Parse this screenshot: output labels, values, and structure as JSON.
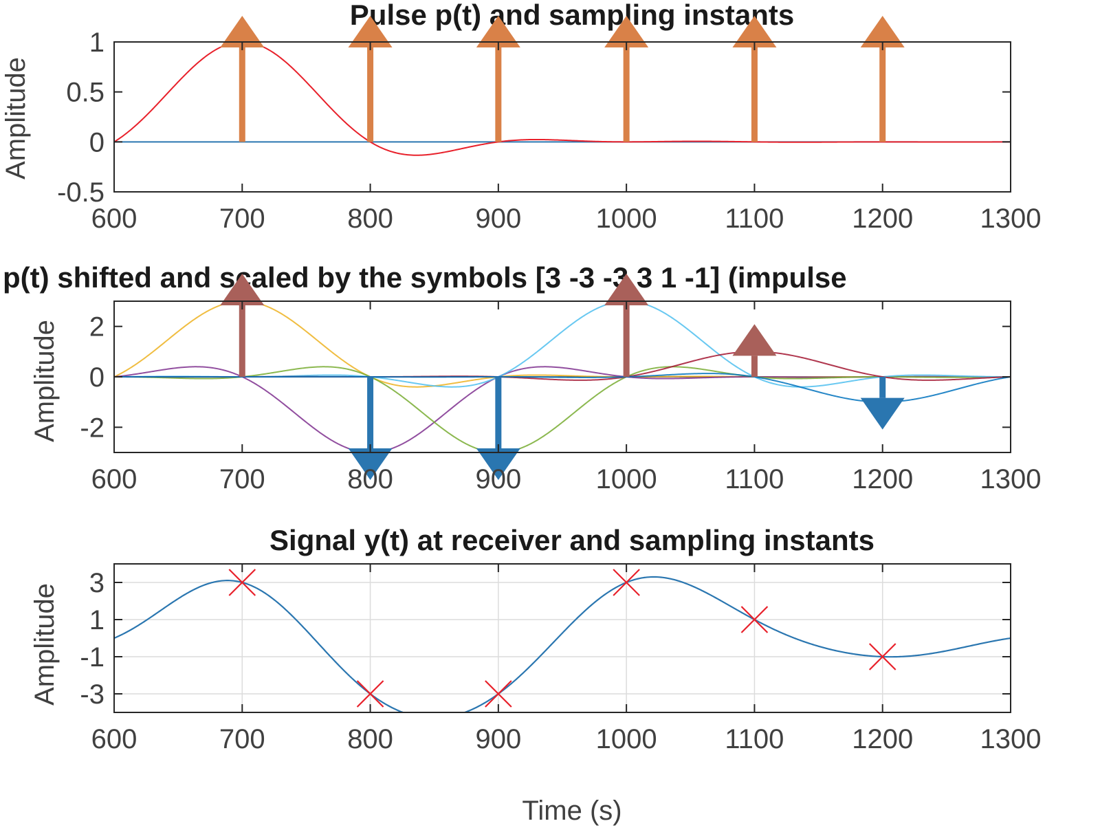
{
  "chart_data": [
    {
      "type": "line",
      "title": "Pulse p(t) and sampling instants",
      "ylabel": "Amplitude",
      "xlabel": "",
      "xlim": [
        600,
        1300
      ],
      "ylim": [
        -0.5,
        1
      ],
      "x_ticks": [
        600,
        700,
        800,
        900,
        1000,
        1100,
        1200,
        1300
      ],
      "x_tick_labels": [
        "600",
        "700",
        "800",
        "900",
        "1000",
        "1100",
        "1200",
        "1300"
      ],
      "y_ticks": [
        1,
        0.5,
        0,
        -0.5
      ],
      "y_tick_labels": [
        "1",
        "0.5",
        "0",
        "-0.5"
      ],
      "grid": false,
      "pulse": {
        "name": "p(t)",
        "center": 700,
        "symbol_period": 100,
        "rolloff": 0.5,
        "color": "#e8202a"
      },
      "baseline": {
        "value": 0,
        "color": "#2a76b0"
      },
      "impulses": {
        "x": [
          700,
          800,
          900,
          1000,
          1100,
          1200
        ],
        "height": 1,
        "color": "#d98148"
      }
    },
    {
      "type": "line",
      "title": "p(t) shifted and scaled by the symbols [3 -3 -3  3  1 -1] (impulse",
      "ylabel": "Amplitude",
      "xlabel": "",
      "xlim": [
        600,
        1300
      ],
      "ylim": [
        -3,
        3
      ],
      "x_ticks": [
        600,
        700,
        800,
        900,
        1000,
        1100,
        1200,
        1300
      ],
      "x_tick_labels": [
        "600",
        "700",
        "800",
        "900",
        "1000",
        "1100",
        "1200",
        "1300"
      ],
      "y_ticks": [
        2,
        0,
        -2
      ],
      "y_tick_labels": [
        "2",
        "0",
        "-2"
      ],
      "grid": false,
      "symbols": [
        3,
        -3,
        -3,
        3,
        1,
        -1
      ],
      "symbol_times": [
        700,
        800,
        900,
        1000,
        1100,
        1200
      ],
      "series_colors": [
        "#edb120",
        "#7e2f8e",
        "#77ac30",
        "#4dbeee",
        "#a2142f",
        "#0072bd"
      ],
      "positive_arrow_color": "#a9605a",
      "negative_arrow_color": "#2a76b0"
    },
    {
      "type": "line",
      "title": "Signal y(t) at receiver and sampling instants",
      "ylabel": "Amplitude",
      "xlabel": "Time (s)",
      "xlim": [
        600,
        1300
      ],
      "ylim": [
        -4,
        4
      ],
      "x_ticks": [
        600,
        700,
        800,
        900,
        1000,
        1100,
        1200,
        1300
      ],
      "x_tick_labels": [
        "600",
        "700",
        "800",
        "900",
        "1000",
        "1100",
        "1200",
        "1300"
      ],
      "y_ticks": [
        3,
        1,
        -1,
        -3
      ],
      "y_tick_labels": [
        "3",
        "1",
        "-1",
        "-3"
      ],
      "grid": true,
      "signal": {
        "name": "y(t)",
        "color": "#2a76b0"
      },
      "samples": {
        "x": [
          700,
          800,
          900,
          1000,
          1100,
          1200
        ],
        "y": [
          3,
          -3,
          -3,
          3,
          1,
          -1
        ],
        "marker": "x",
        "color": "#e8202a"
      }
    }
  ]
}
